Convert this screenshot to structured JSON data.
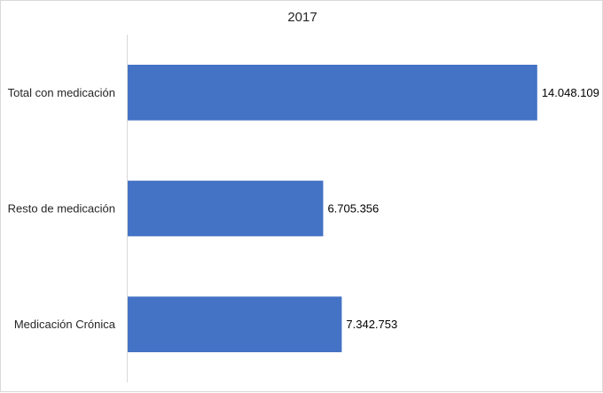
{
  "chart_data": {
    "type": "bar",
    "orientation": "horizontal",
    "title": "2017",
    "categories": [
      "Total con medicación",
      "Resto de medicación",
      "Medicación Crónica"
    ],
    "values": [
      14048109,
      6705356,
      7342753
    ],
    "value_labels": [
      "14.048.109",
      "6.705.356",
      "7.342.753"
    ],
    "xlim": [
      0,
      16000000
    ],
    "xlabel": "",
    "ylabel": "",
    "grid": false,
    "legend": "none",
    "bar_color": "#4472C4"
  }
}
